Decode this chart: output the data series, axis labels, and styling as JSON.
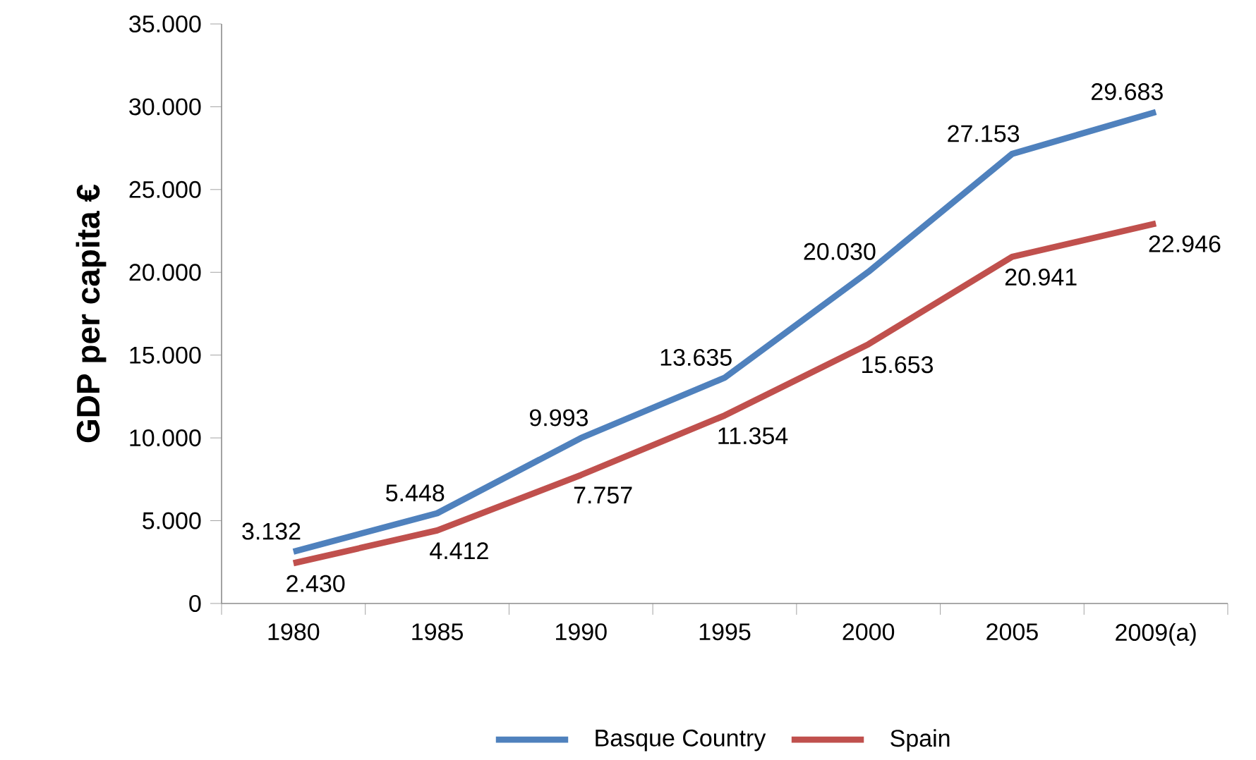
{
  "chart_data": {
    "type": "line",
    "ylabel": "**GDP per capita €**",
    "categories": [
      "1980",
      "1985",
      "1990",
      "1995",
      "2000",
      "2005",
      "2009(a)"
    ],
    "series": [
      {
        "name": "Basque Country",
        "color": "#4f81bd",
        "values": [
          3132,
          5448,
          9993,
          13635,
          20030,
          27153,
          29683
        ],
        "value_labels": [
          "3.132",
          "5.448",
          "9.993",
          "13.635",
          "20.030",
          "27.153",
          "29.683"
        ]
      },
      {
        "name": "Spain",
        "color": "#c0504d",
        "values": [
          2430,
          4412,
          7757,
          11354,
          15653,
          20941,
          22946
        ],
        "value_labels": [
          "2.430",
          "4.412",
          "7.757",
          "11.354",
          "15.653",
          "20.941",
          "22.946"
        ]
      }
    ],
    "ylim": [
      0,
      35000
    ],
    "yticks": [
      {
        "value": 0,
        "label": "0"
      },
      {
        "value": 5000,
        "label": "5.000"
      },
      {
        "value": 10000,
        "label": "10.000"
      },
      {
        "value": 15000,
        "label": "15.000"
      },
      {
        "value": 20000,
        "label": "20.000"
      },
      {
        "value": 25000,
        "label": "25.000"
      },
      {
        "value": 30000,
        "label": "30.000"
      },
      {
        "value": 35000,
        "label": "35.000"
      }
    ],
    "legend": "bottom"
  }
}
